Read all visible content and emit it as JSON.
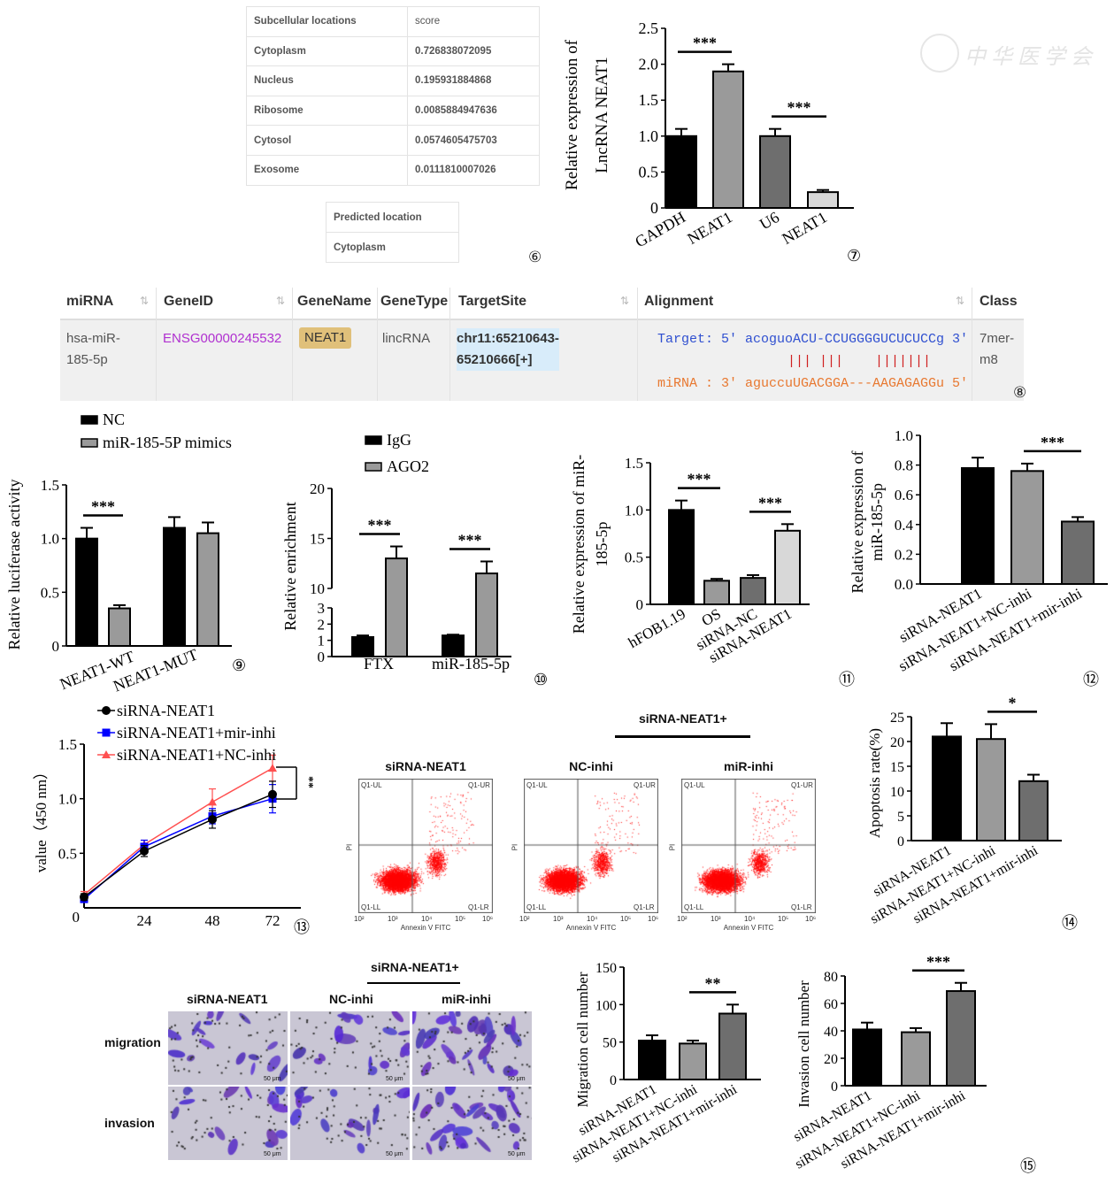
{
  "watermark": "中华医学会",
  "panel6": {
    "number": "⑥",
    "headers": [
      "Subcellular locations",
      "score"
    ],
    "rows": [
      [
        "Cytoplasm",
        "0.726838072095"
      ],
      [
        "Nucleus",
        "0.195931884868"
      ],
      [
        "Ribosome",
        "0.0085884947636"
      ],
      [
        "Cytosol",
        "0.0574605475703"
      ],
      [
        "Exosome",
        "0.0111810007026"
      ]
    ],
    "predicted_header": "Predicted location",
    "predicted_value": "Cytoplasm"
  },
  "panel8": {
    "number": "⑧",
    "headers": [
      "miRNA",
      "GeneID",
      "GeneName",
      "GeneType",
      "TargetSite",
      "Alignment",
      "Class"
    ],
    "row": {
      "mirna_line1": "hsa-miR-",
      "mirna_line2": "185-5p",
      "gene_id": "ENSG00000245532",
      "gene_name": "NEAT1",
      "gene_type": "lincRNA",
      "target_site_line1": "chr11:65210643-",
      "target_site_line2": "65210666[+]",
      "align_target": "Target: 5' acoguoACU-CCUGGGGUCUCUCCg 3'",
      "align_bars": "||| |||    |||||||",
      "align_mirna": "miRNA : 3' aguccuUGACGGA---AAGAGAGGu 5'",
      "class_line1": "7mer-",
      "class_line2": "m8"
    },
    "colors": {
      "gene_id": "#b030d0",
      "gene_name_bg": "#e0c07a",
      "target_site_bg": "#d8ecfa",
      "target": "#3050d0",
      "mirna": "#e87830",
      "bars": "#d02020"
    }
  },
  "panel15_images": {
    "header": "siRNA-NEAT1+",
    "columns": [
      "siRNA-NEAT1",
      "NC-inhi",
      "miR-inhi"
    ],
    "rows": [
      "migration",
      "invasion"
    ],
    "scale_bar": "50 μm"
  },
  "flow": {
    "number": "⑭",
    "header": "siRNA-NEAT1+",
    "plots": [
      "siRNA-NEAT1",
      "NC-inhi",
      "miR-inhi"
    ],
    "xlabel": "Annexin V FITC",
    "ylabel": "PI",
    "quadrants": [
      "Q1-UL",
      "Q1-UR",
      "Q1-LL",
      "Q1-LR"
    ],
    "ticks": [
      "10²",
      "10³",
      "10⁴",
      "10⁵",
      "10⁶"
    ],
    "dot_color": "#ff0000"
  },
  "chart_data": [
    {
      "id": "c7",
      "number": "⑦",
      "type": "bar",
      "categories": [
        "GAPDH",
        "NEAT1",
        "U6",
        "NEAT1"
      ],
      "values": [
        1.0,
        1.9,
        1.0,
        0.22
      ],
      "errors": [
        0.1,
        0.1,
        0.1,
        0.03
      ],
      "colors": [
        "#000000",
        "#9a9a9a",
        "#6e6e6e",
        "#d8d8d8"
      ],
      "ylabel": [
        "Relative expression of",
        "LncRNA NEAT1"
      ],
      "ylim": [
        0,
        2.5
      ],
      "yticks": [
        "0",
        "0.5",
        "1.0",
        "1.5",
        "2.0",
        "2.5"
      ],
      "significance": [
        {
          "a": 0,
          "b": 1,
          "label": "***"
        },
        {
          "a": 2,
          "b": 3,
          "label": "***"
        }
      ]
    },
    {
      "id": "c9",
      "number": "⑨",
      "type": "bar",
      "categories": [
        "NEAT1-WT",
        "NEAT1-MUT"
      ],
      "series": [
        {
          "name": "NC",
          "values": [
            1.0,
            1.1
          ],
          "errors": [
            0.1,
            0.1
          ],
          "color": "#000000"
        },
        {
          "name": "miR-185-5P mimics",
          "values": [
            0.35,
            1.05
          ],
          "errors": [
            0.03,
            0.1
          ],
          "color": "#9a9a9a"
        }
      ],
      "ylabel": [
        "Relative luciferase activity"
      ],
      "ylim": [
        0,
        1.5
      ],
      "yticks": [
        "0",
        "0.5",
        "1.0",
        "1.5"
      ],
      "significance": [
        {
          "a": 0,
          "b": 1,
          "label": "***"
        }
      ],
      "legend": "top-left"
    },
    {
      "id": "c10",
      "number": "⑩",
      "type": "bar",
      "categories": [
        "FTX",
        "miR-185-5p"
      ],
      "series": [
        {
          "name": "IgG",
          "values": [
            1.2,
            1.3
          ],
          "errors": [
            0.1,
            0.05
          ],
          "color": "#000000"
        },
        {
          "name": "AGO2",
          "values": [
            13.0,
            11.5
          ],
          "errors": [
            1.2,
            1.2
          ],
          "color": "#9a9a9a"
        }
      ],
      "ylabel": [
        "Relative enrichment"
      ],
      "ylim": [
        0,
        20
      ],
      "axis_break": [
        3,
        10
      ],
      "yticks": [
        "0",
        "1",
        "2",
        "3",
        "10",
        "15",
        "20"
      ],
      "significance": [
        {
          "a": 0,
          "b": 1,
          "label": "***"
        },
        {
          "a": 2,
          "b": 3,
          "label": "***"
        }
      ],
      "legend": "top-left"
    },
    {
      "id": "c11",
      "number": "⑪",
      "type": "bar",
      "categories": [
        "hFOB1.19",
        "OS",
        "siRNA-NC",
        "siRNA-NEAT1"
      ],
      "values": [
        1.0,
        0.25,
        0.28,
        0.78
      ],
      "errors": [
        0.1,
        0.02,
        0.03,
        0.07
      ],
      "colors": [
        "#000000",
        "#9a9a9a",
        "#6e6e6e",
        "#d8d8d8"
      ],
      "ylabel": [
        "Relative expression of miR-",
        "185-5p"
      ],
      "ylim": [
        0,
        1.5
      ],
      "yticks": [
        "0",
        "0.5",
        "1.0",
        "1.5"
      ],
      "significance": [
        {
          "a": 0,
          "b": 1,
          "label": "***"
        },
        {
          "a": 2,
          "b": 3,
          "label": "***"
        }
      ]
    },
    {
      "id": "c12",
      "number": "⑫",
      "type": "bar",
      "categories": [
        "siRNA-NEAT1",
        "siRNA-NEAT1+NC-inhi",
        "siRNA-NEAT1+mir-inhi"
      ],
      "values": [
        0.78,
        0.76,
        0.42
      ],
      "errors": [
        0.07,
        0.05,
        0.03
      ],
      "colors": [
        "#000000",
        "#9a9a9a",
        "#6e6e6e"
      ],
      "ylabel": [
        "Relative expression of",
        "miR-185-5p"
      ],
      "ylim": [
        0,
        1.0
      ],
      "yticks": [
        "0.0",
        "0.2",
        "0.4",
        "0.6",
        "0.8",
        "1.0"
      ],
      "significance": [
        {
          "a": 1,
          "b": 2,
          "label": "***"
        }
      ]
    },
    {
      "id": "c13",
      "number": "⑬",
      "type": "line",
      "x": [
        0,
        24,
        48,
        72
      ],
      "series": [
        {
          "name": "siRNA-NEAT1",
          "values": [
            0.1,
            0.52,
            0.81,
            1.04
          ],
          "errors": [
            0.03,
            0.05,
            0.08,
            0.12
          ],
          "color": "#000000",
          "marker": "circle"
        },
        {
          "name": "siRNA-NEAT1+mir-inhi",
          "values": [
            0.08,
            0.56,
            0.84,
            1.0
          ],
          "errors": [
            0.03,
            0.06,
            0.07,
            0.13
          ],
          "color": "#0000ff",
          "marker": "square"
        },
        {
          "name": "siRNA-NEAT1+NC-inhi",
          "values": [
            0.12,
            0.58,
            0.97,
            1.28
          ],
          "errors": [
            0.03,
            0.04,
            0.12,
            0.12
          ],
          "color": "#ff5050",
          "marker": "triangle"
        }
      ],
      "ylabel": "value（450 nm）",
      "ylim": [
        0,
        1.5
      ],
      "yticks": [
        "0",
        "0.5",
        "1.0",
        "1.5"
      ],
      "xticks": [
        "24",
        "48",
        "72"
      ],
      "significance": [
        {
          "label": "**"
        }
      ],
      "legend": "top-left"
    },
    {
      "id": "c14",
      "number": "⑭",
      "type": "bar",
      "categories": [
        "siRNA-NEAT1",
        "siRNA-NEAT1+NC-inhi",
        "siRNA-NEAT1+mir-inhi"
      ],
      "values": [
        21,
        20.5,
        12
      ],
      "errors": [
        2.7,
        3,
        1.3
      ],
      "colors": [
        "#000000",
        "#9a9a9a",
        "#6e6e6e"
      ],
      "ylabel": [
        "Apoptosis rate(%)"
      ],
      "ylim": [
        0,
        25
      ],
      "yticks": [
        "0",
        "5",
        "10",
        "15",
        "20",
        "25"
      ],
      "significance": [
        {
          "a": 1,
          "b": 2,
          "label": "*"
        }
      ]
    },
    {
      "id": "c15a",
      "number": "",
      "type": "bar",
      "categories": [
        "siRNA-NEAT1",
        "siRNA-NEAT1+NC-inhi",
        "siRNA-NEAT1+mir-inhi"
      ],
      "values": [
        52,
        48,
        88
      ],
      "errors": [
        7,
        4,
        12
      ],
      "colors": [
        "#000000",
        "#9a9a9a",
        "#6e6e6e"
      ],
      "ylabel": [
        "Migration cell number"
      ],
      "ylim": [
        0,
        150
      ],
      "yticks": [
        "0",
        "50",
        "100",
        "150"
      ],
      "significance": [
        {
          "a": 1,
          "b": 2,
          "label": "**"
        }
      ]
    },
    {
      "id": "c15b",
      "number": "⑮",
      "type": "bar",
      "categories": [
        "siRNA-NEAT1",
        "siRNA-NEAT1+NC-inhi",
        "siRNA-NEAT1+mir-inhi"
      ],
      "values": [
        41,
        39,
        69
      ],
      "errors": [
        5,
        3,
        6
      ],
      "colors": [
        "#000000",
        "#9a9a9a",
        "#6e6e6e"
      ],
      "ylabel": [
        "Invasion cell number"
      ],
      "ylim": [
        0,
        80
      ],
      "yticks": [
        "0",
        "20",
        "40",
        "60",
        "80"
      ],
      "significance": [
        {
          "a": 1,
          "b": 2,
          "label": "***"
        }
      ]
    }
  ]
}
